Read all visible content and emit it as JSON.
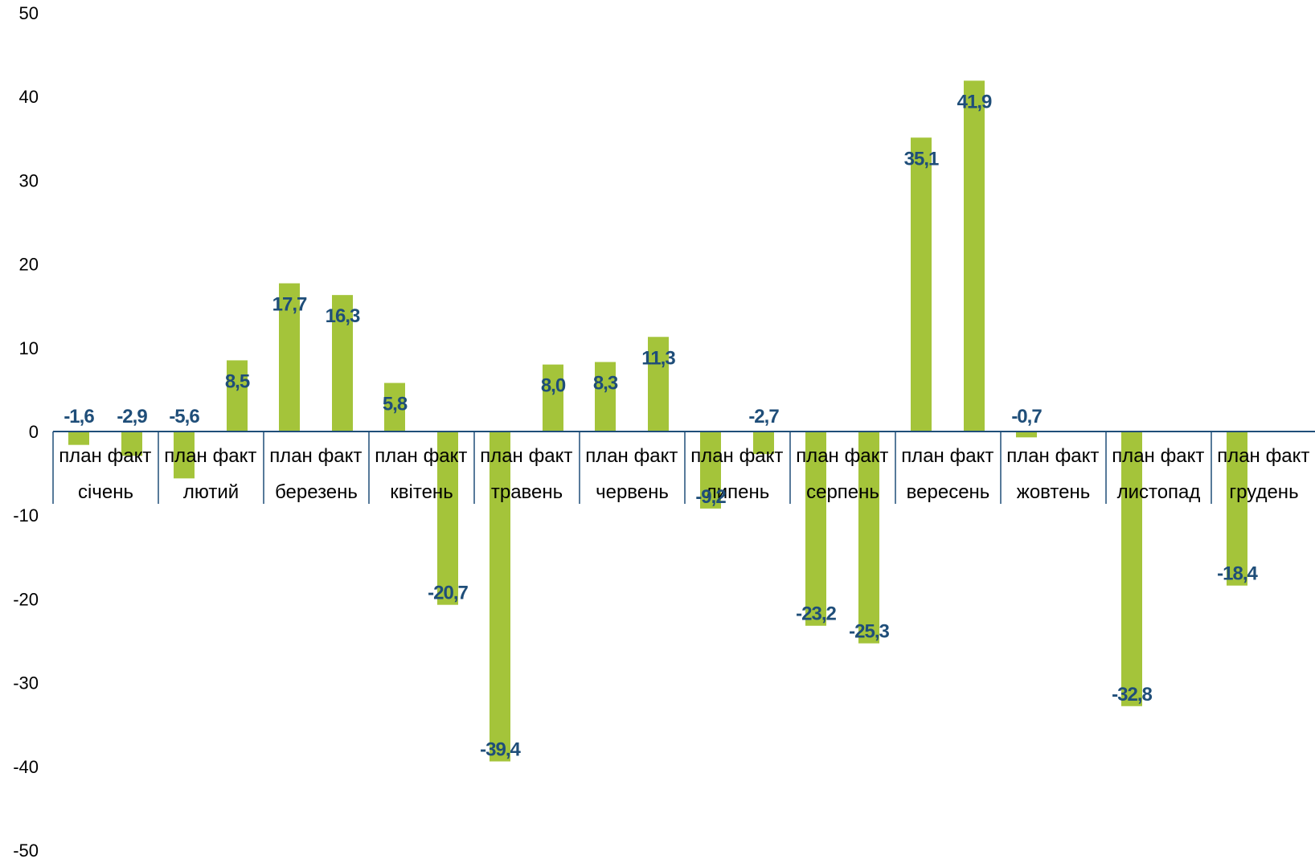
{
  "chart_data": {
    "type": "bar",
    "title": "",
    "xlabel": "",
    "ylabel": "",
    "ylim": [
      -50,
      50
    ],
    "yticks": [
      "50",
      "40",
      "30",
      "20",
      "10",
      "0",
      "-10",
      "-20",
      "-30",
      "-40",
      "-50"
    ],
    "grid": false,
    "legend": "none",
    "colors": {
      "bar": "#a4c43a",
      "axis": "#1f4e79",
      "label": "#1f4e79"
    },
    "groups": [
      {
        "month": "січень",
        "bars": [
          {
            "sub": "план",
            "value": -1.6,
            "label": "-1,6"
          },
          {
            "sub": "факт",
            "value": -2.9,
            "label": "-2,9"
          }
        ]
      },
      {
        "month": "лютий",
        "bars": [
          {
            "sub": "план",
            "value": -5.6,
            "label": "-5,6"
          },
          {
            "sub": "факт",
            "value": 8.5,
            "label": "8,5"
          }
        ]
      },
      {
        "month": "березень",
        "bars": [
          {
            "sub": "план",
            "value": 17.7,
            "label": "17,7"
          },
          {
            "sub": "факт",
            "value": 16.3,
            "label": "16,3"
          }
        ]
      },
      {
        "month": "квітень",
        "bars": [
          {
            "sub": "план",
            "value": 5.8,
            "label": "5,8"
          },
          {
            "sub": "факт",
            "value": -20.7,
            "label": "-20,7"
          }
        ]
      },
      {
        "month": "травень",
        "bars": [
          {
            "sub": "план",
            "value": -39.4,
            "label": "-39,4"
          },
          {
            "sub": "факт",
            "value": 8.0,
            "label": "8,0"
          }
        ]
      },
      {
        "month": "червень",
        "bars": [
          {
            "sub": "план",
            "value": 8.3,
            "label": "8,3"
          },
          {
            "sub": "факт",
            "value": 11.3,
            "label": "11,3"
          }
        ]
      },
      {
        "month": "липень",
        "bars": [
          {
            "sub": "план",
            "value": -9.2,
            "label": "-9,2"
          },
          {
            "sub": "факт",
            "value": -2.7,
            "label": "-2,7"
          }
        ]
      },
      {
        "month": "серпень",
        "bars": [
          {
            "sub": "план",
            "value": -23.2,
            "label": "-23,2"
          },
          {
            "sub": "факт",
            "value": -25.3,
            "label": "-25,3"
          }
        ]
      },
      {
        "month": "вересень",
        "bars": [
          {
            "sub": "план",
            "value": 35.1,
            "label": "35,1"
          },
          {
            "sub": "факт",
            "value": 41.9,
            "label": "41,9"
          }
        ]
      },
      {
        "month": "жовтень",
        "bars": [
          {
            "sub": "план",
            "value": -0.7,
            "label": "-0,7"
          },
          {
            "sub": "факт",
            "value": null,
            "label": ""
          }
        ]
      },
      {
        "month": "листопад",
        "bars": [
          {
            "sub": "план",
            "value": -32.8,
            "label": "-32,8"
          },
          {
            "sub": "факт",
            "value": null,
            "label": ""
          }
        ]
      },
      {
        "month": "грудень",
        "bars": [
          {
            "sub": "план",
            "value": -18.4,
            "label": "-18,4"
          },
          {
            "sub": "факт",
            "value": null,
            "label": ""
          }
        ]
      }
    ]
  }
}
